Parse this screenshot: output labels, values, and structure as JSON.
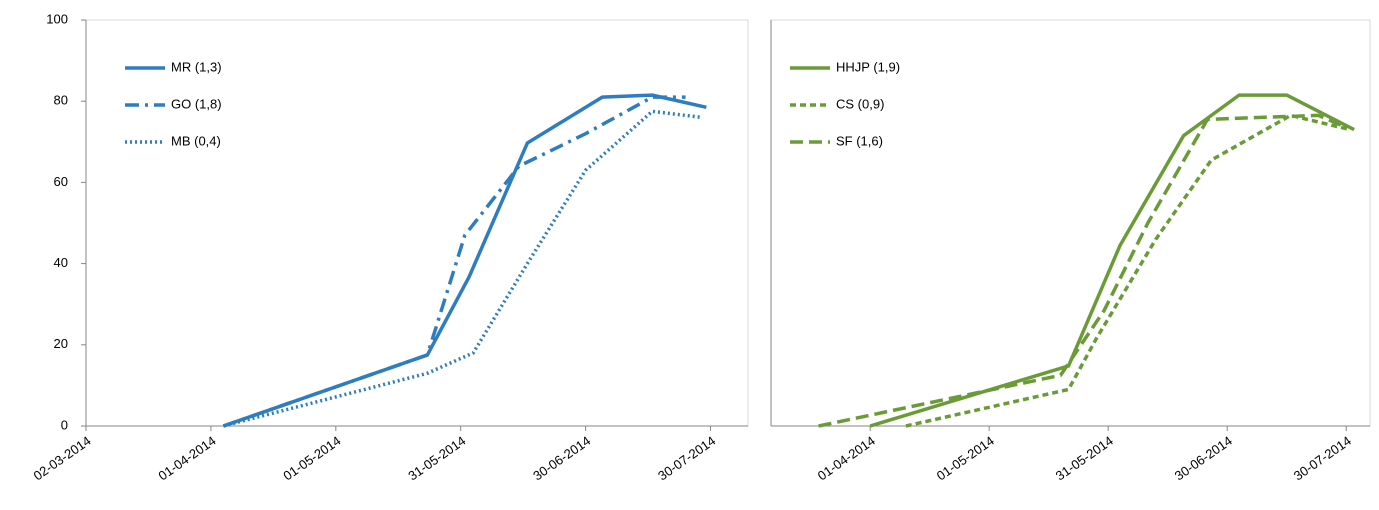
{
  "chart_data": [
    {
      "type": "line",
      "xlim": [
        "02-03-2014",
        "08-08-2014"
      ],
      "xticks": [
        "02-03-2014",
        "01-04-2014",
        "01-05-2014",
        "31-05-2014",
        "30-06-2014",
        "30-07-2014"
      ],
      "ylim": [
        0,
        100
      ],
      "yticks": [
        0,
        20,
        40,
        60,
        80,
        100
      ],
      "legend": "upper-left",
      "series": [
        {
          "name": "MR (1,3)",
          "color": "#2e7dbf",
          "dash": "solid",
          "x": [
            "04-04-2014",
            "23-05-2014",
            "02-06-2014",
            "16-06-2014",
            "04-07-2014",
            "16-07-2014",
            "29-07-2014"
          ],
          "values": [
            0,
            17.5,
            36.7,
            69.7,
            81,
            81.5,
            78.5
          ]
        },
        {
          "name": "GO (1,8)",
          "color": "#2e7dbf",
          "dash": "dashdot",
          "x": [
            "04-04-2014",
            "23-05-2014",
            "01-06-2014",
            "14-06-2014",
            "30-06-2014",
            "16-07-2014",
            "24-07-2014"
          ],
          "values": [
            0,
            17.5,
            47,
            64,
            72,
            81,
            81
          ]
        },
        {
          "name": "MB (0,4)",
          "color": "#2e7dbf",
          "dash": "dotted",
          "x": [
            "04-04-2014",
            "23-05-2014",
            "03-06-2014",
            "16-06-2014",
            "30-06-2014",
            "16-07-2014",
            "28-07-2014"
          ],
          "values": [
            0,
            13,
            18,
            40,
            63,
            77.5,
            76
          ]
        }
      ]
    },
    {
      "type": "line",
      "xlim": [
        "07-03-2014",
        "05-08-2014"
      ],
      "xticks": [
        "01-04-2014",
        "01-05-2014",
        "31-05-2014",
        "30-06-2014",
        "30-07-2014"
      ],
      "ylim": [
        0,
        100
      ],
      "legend": "upper-left",
      "series": [
        {
          "name": "HHJP (1,9)",
          "color": "#6b9b37",
          "dash": "solid",
          "x": [
            "01-04-2014",
            "21-05-2014",
            "03-06-2014",
            "19-06-2014",
            "03-07-2014",
            "15-07-2014",
            "01-08-2014"
          ],
          "values": [
            0,
            14.8,
            44.5,
            71.5,
            81.5,
            81.5,
            73
          ]
        },
        {
          "name": "CS (0,9)",
          "color": "#6b9b37",
          "dash": "short",
          "x": [
            "10-04-2014",
            "21-05-2014",
            "28-05-2014",
            "12-06-2014",
            "26-06-2014",
            "16-07-2014",
            "31-07-2014"
          ],
          "values": [
            0,
            9,
            21.5,
            46,
            65.5,
            76.5,
            73
          ]
        },
        {
          "name": "SF (1,6)",
          "color": "#6b9b37",
          "dash": "dashed",
          "x": [
            "19-03-2014",
            "19-05-2014",
            "30-05-2014",
            "10-06-2014",
            "25-06-2014",
            "08-07-2014",
            "23-07-2014",
            "29-07-2014"
          ],
          "values": [
            0,
            12.5,
            28.5,
            50,
            75.5,
            76,
            76.5,
            74
          ]
        }
      ]
    }
  ]
}
